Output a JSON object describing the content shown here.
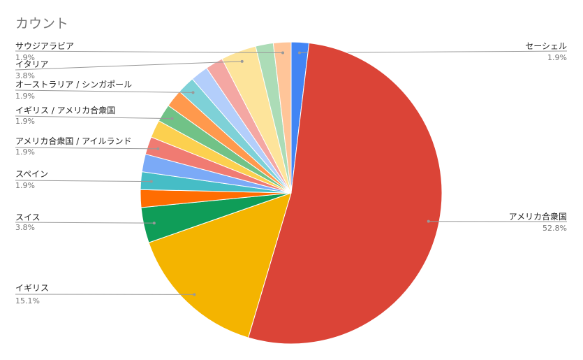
{
  "chart_data": {
    "type": "pie",
    "title": "カウント",
    "categories": [
      "セーシェル",
      "アメリカ合衆国",
      "イギリス",
      "スイス",
      null,
      "スペイン",
      null,
      "アメリカ合衆国 / アイルランド",
      null,
      "イギリス / アメリカ合衆国",
      null,
      "オーストラリア / シンガポール",
      null,
      null,
      "イタリア",
      null,
      "サウジアラビア"
    ],
    "values": [
      1.9,
      52.8,
      15.1,
      3.8,
      1.9,
      1.9,
      1.9,
      1.9,
      1.9,
      1.9,
      1.9,
      1.9,
      1.9,
      1.9,
      3.8,
      1.9,
      1.9
    ],
    "value_labels": [
      "1.9%",
      "52.8%",
      "15.1%",
      "3.8%",
      null,
      "1.9%",
      null,
      "1.9%",
      null,
      "1.9%",
      null,
      "1.9%",
      null,
      null,
      "3.8%",
      null,
      "1.9%"
    ],
    "colors": [
      "#4285f4",
      "#db4437",
      "#f4b400",
      "#0f9d58",
      "#ff6d01",
      "#46bdc6",
      "#7baaf7",
      "#f07b72",
      "#fcd04f",
      "#71c287",
      "#ff994d",
      "#7ed1d7",
      "#b3cefb",
      "#f4a7a3",
      "#fde49b",
      "#acdcb7",
      "#ffc599"
    ]
  }
}
